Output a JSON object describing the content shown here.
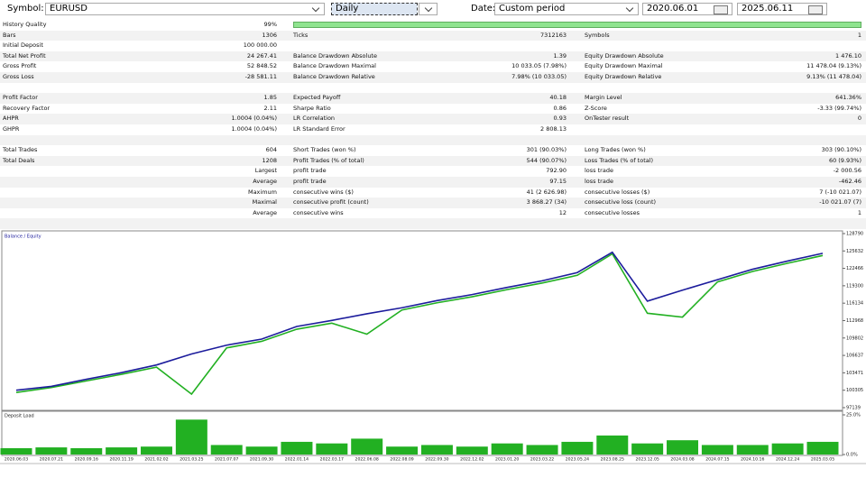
{
  "toolbar": {
    "symbol_label": "Symbol:",
    "symbol": "EURUSD",
    "period": "Daily",
    "date_label": "Date:",
    "date_mode": "Custom period",
    "from": "2020.06.01",
    "to": "2025.06.11"
  },
  "stats": {
    "sections": [
      [
        {
          "left": [
            "History Quality",
            "99%"
          ]
        },
        {
          "left": [
            "Bars",
            "1306"
          ],
          "middle": [
            "Ticks",
            "7312163"
          ],
          "right": [
            "Symbols",
            "1"
          ]
        },
        {
          "left": [
            "Initial Deposit",
            "100 000.00"
          ]
        },
        {
          "left": [
            "Total Net Profit",
            "24 267.41"
          ],
          "middle": [
            "Balance Drawdown Absolute",
            "1.39"
          ],
          "right": [
            "Equity Drawdown Absolute",
            "1 476.10"
          ]
        },
        {
          "left": [
            "Gross Profit",
            "52 848.52"
          ],
          "middle": [
            "Balance Drawdown Maximal",
            "10 033.05 (7.98%)"
          ],
          "right": [
            "Equity Drawdown Maximal",
            "11 478.04 (9.13%)"
          ]
        },
        {
          "left": [
            "Gross Loss",
            "-28 581.11"
          ],
          "middle": [
            "Balance Drawdown Relative",
            "7.98% (10 033.05)"
          ],
          "right": [
            "Equity Drawdown Relative",
            "9.13% (11 478.04)"
          ]
        }
      ],
      [
        {
          "left": [
            "Profit Factor",
            "1.85"
          ],
          "middle": [
            "Expected Payoff",
            "40.18"
          ],
          "right": [
            "Margin Level",
            "641.36%"
          ]
        },
        {
          "left": [
            "Recovery Factor",
            "2.11"
          ],
          "middle": [
            "Sharpe Ratio",
            "0.86"
          ],
          "right": [
            "Z-Score",
            "-3.33 (99.74%)"
          ]
        },
        {
          "left": [
            "AHPR",
            "1.0004 (0.04%)"
          ],
          "middle": [
            "LR Correlation",
            "0.93"
          ],
          "right": [
            "OnTester result",
            "0"
          ]
        },
        {
          "left": [
            "GHPR",
            "1.0004 (0.04%)"
          ],
          "middle": [
            "LR Standard Error",
            "2 808.13"
          ]
        }
      ],
      [
        {
          "left": [
            "Total Trades",
            "604"
          ],
          "middle": [
            "Short Trades (won %)",
            "301 (90.03%)"
          ],
          "right": [
            "Long Trades (won %)",
            "303 (90.10%)"
          ]
        },
        {
          "left": [
            "Total Deals",
            "1208"
          ],
          "middle": [
            "Profit Trades (% of total)",
            "544 (90.07%)"
          ],
          "right": [
            "Loss Trades (% of total)",
            "60 (9.93%)"
          ]
        },
        {
          "left": [
            "Largest"
          ],
          "middle": [
            "profit trade",
            "792.90"
          ],
          "right": [
            "loss trade",
            "-2 000.56"
          ]
        },
        {
          "left": [
            "Average"
          ],
          "middle": [
            "profit trade",
            "97.15"
          ],
          "right": [
            "loss trade",
            "-462.46"
          ]
        },
        {
          "left": [
            "Maximum"
          ],
          "middle": [
            "consecutive wins ($)",
            "41 (2 626.98)"
          ],
          "right": [
            "consecutive losses ($)",
            "7 (-10 021.07)"
          ]
        },
        {
          "left": [
            "Maximal"
          ],
          "middle": [
            "consecutive profit (count)",
            "3 868.27 (34)"
          ],
          "right": [
            "consecutive loss (count)",
            "-10 021.07 (7)"
          ]
        },
        {
          "left": [
            "Average"
          ],
          "middle": [
            "consecutive wins",
            "12"
          ],
          "right": [
            "consecutive losses",
            "1"
          ]
        }
      ]
    ]
  },
  "chart_data": [
    {
      "type": "line",
      "title": "Balance / Equity",
      "categories": [
        "2020.06.03",
        "2020.07.21",
        "2020.09.16",
        "2020.11.19",
        "2021.02.02",
        "2021.03.25",
        "2021.07.07",
        "2021.09.30",
        "2022.01.14",
        "2022.03.17",
        "2022.06.08",
        "2022.08.09",
        "2022.09.30",
        "2022.12.02",
        "2023.01.20",
        "2023.03.22",
        "2023.05.24",
        "2023.08.25",
        "2023.12.05",
        "2024.03.08",
        "2024.07.15",
        "2024.10.16",
        "2024.12.24",
        "2025.03.05"
      ],
      "series": [
        {
          "name": "Equity",
          "color": "#22b022",
          "values": [
            99900,
            100800,
            102000,
            103200,
            104500,
            99600,
            108000,
            109200,
            111400,
            112500,
            110500,
            114900,
            116200,
            117300,
            118600,
            119800,
            121200,
            125100,
            114300,
            113600,
            120000,
            121900,
            123400,
            124800
          ]
        },
        {
          "name": "Balance",
          "color": "#1c1c9c",
          "values": [
            100300,
            101000,
            102300,
            103500,
            104900,
            106900,
            108500,
            109600,
            111900,
            113000,
            114200,
            115300,
            116600,
            117700,
            119000,
            120200,
            121700,
            125400,
            116500,
            118500,
            120400,
            122300,
            123800,
            125200
          ]
        }
      ],
      "ylim": [
        97139,
        128790
      ],
      "yticks": [
        97139,
        100305,
        103471,
        106637,
        109802,
        112968,
        116134,
        119300,
        122466,
        125632,
        128790
      ]
    },
    {
      "type": "bar",
      "title": "Deposit Load",
      "color": "#22b022",
      "values": [
        4,
        4.5,
        4,
        4.5,
        5,
        22,
        6,
        5,
        8,
        7,
        10,
        5,
        6,
        5,
        7,
        6,
        8,
        12,
        7,
        9,
        6,
        6,
        7,
        8
      ],
      "ylim": [
        0,
        25
      ],
      "yticks": [
        {
          "value": 0,
          "label": "0.0%"
        },
        {
          "value": 25,
          "label": "25.0%"
        }
      ]
    }
  ]
}
